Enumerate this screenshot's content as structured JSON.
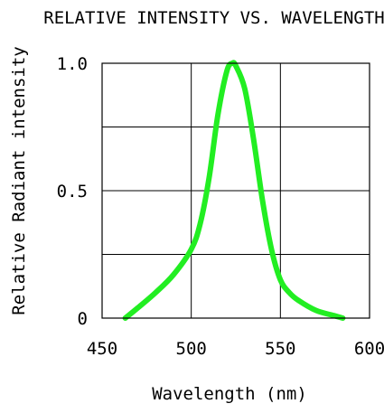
{
  "chart_data": {
    "type": "line",
    "title": "RELATIVE INTENSITY VS. WAVELENGTH",
    "xlabel": "Wavelength (nm)",
    "ylabel": "Relative Radiant intensity",
    "xlim": [
      450,
      600
    ],
    "ylim": [
      0,
      1.0
    ],
    "x_ticks": [
      450,
      500,
      550,
      600
    ],
    "x_tick_labels": [
      "450",
      "500",
      "550",
      "600"
    ],
    "y_ticks": [
      0,
      0.5,
      1.0
    ],
    "y_tick_labels": [
      "0",
      "0.5",
      "1.0"
    ],
    "grid": true,
    "series": [
      {
        "color": "#22ee22",
        "x": [
          463,
          470,
          480,
          490,
          500,
          505,
          510,
          515,
          520,
          523,
          525,
          530,
          535,
          540,
          545,
          550,
          555,
          560,
          570,
          580,
          585
        ],
        "y": [
          0.0,
          0.04,
          0.1,
          0.17,
          0.27,
          0.37,
          0.55,
          0.8,
          0.97,
          1.0,
          0.99,
          0.9,
          0.7,
          0.46,
          0.27,
          0.15,
          0.1,
          0.07,
          0.03,
          0.01,
          0.0
        ]
      }
    ]
  }
}
